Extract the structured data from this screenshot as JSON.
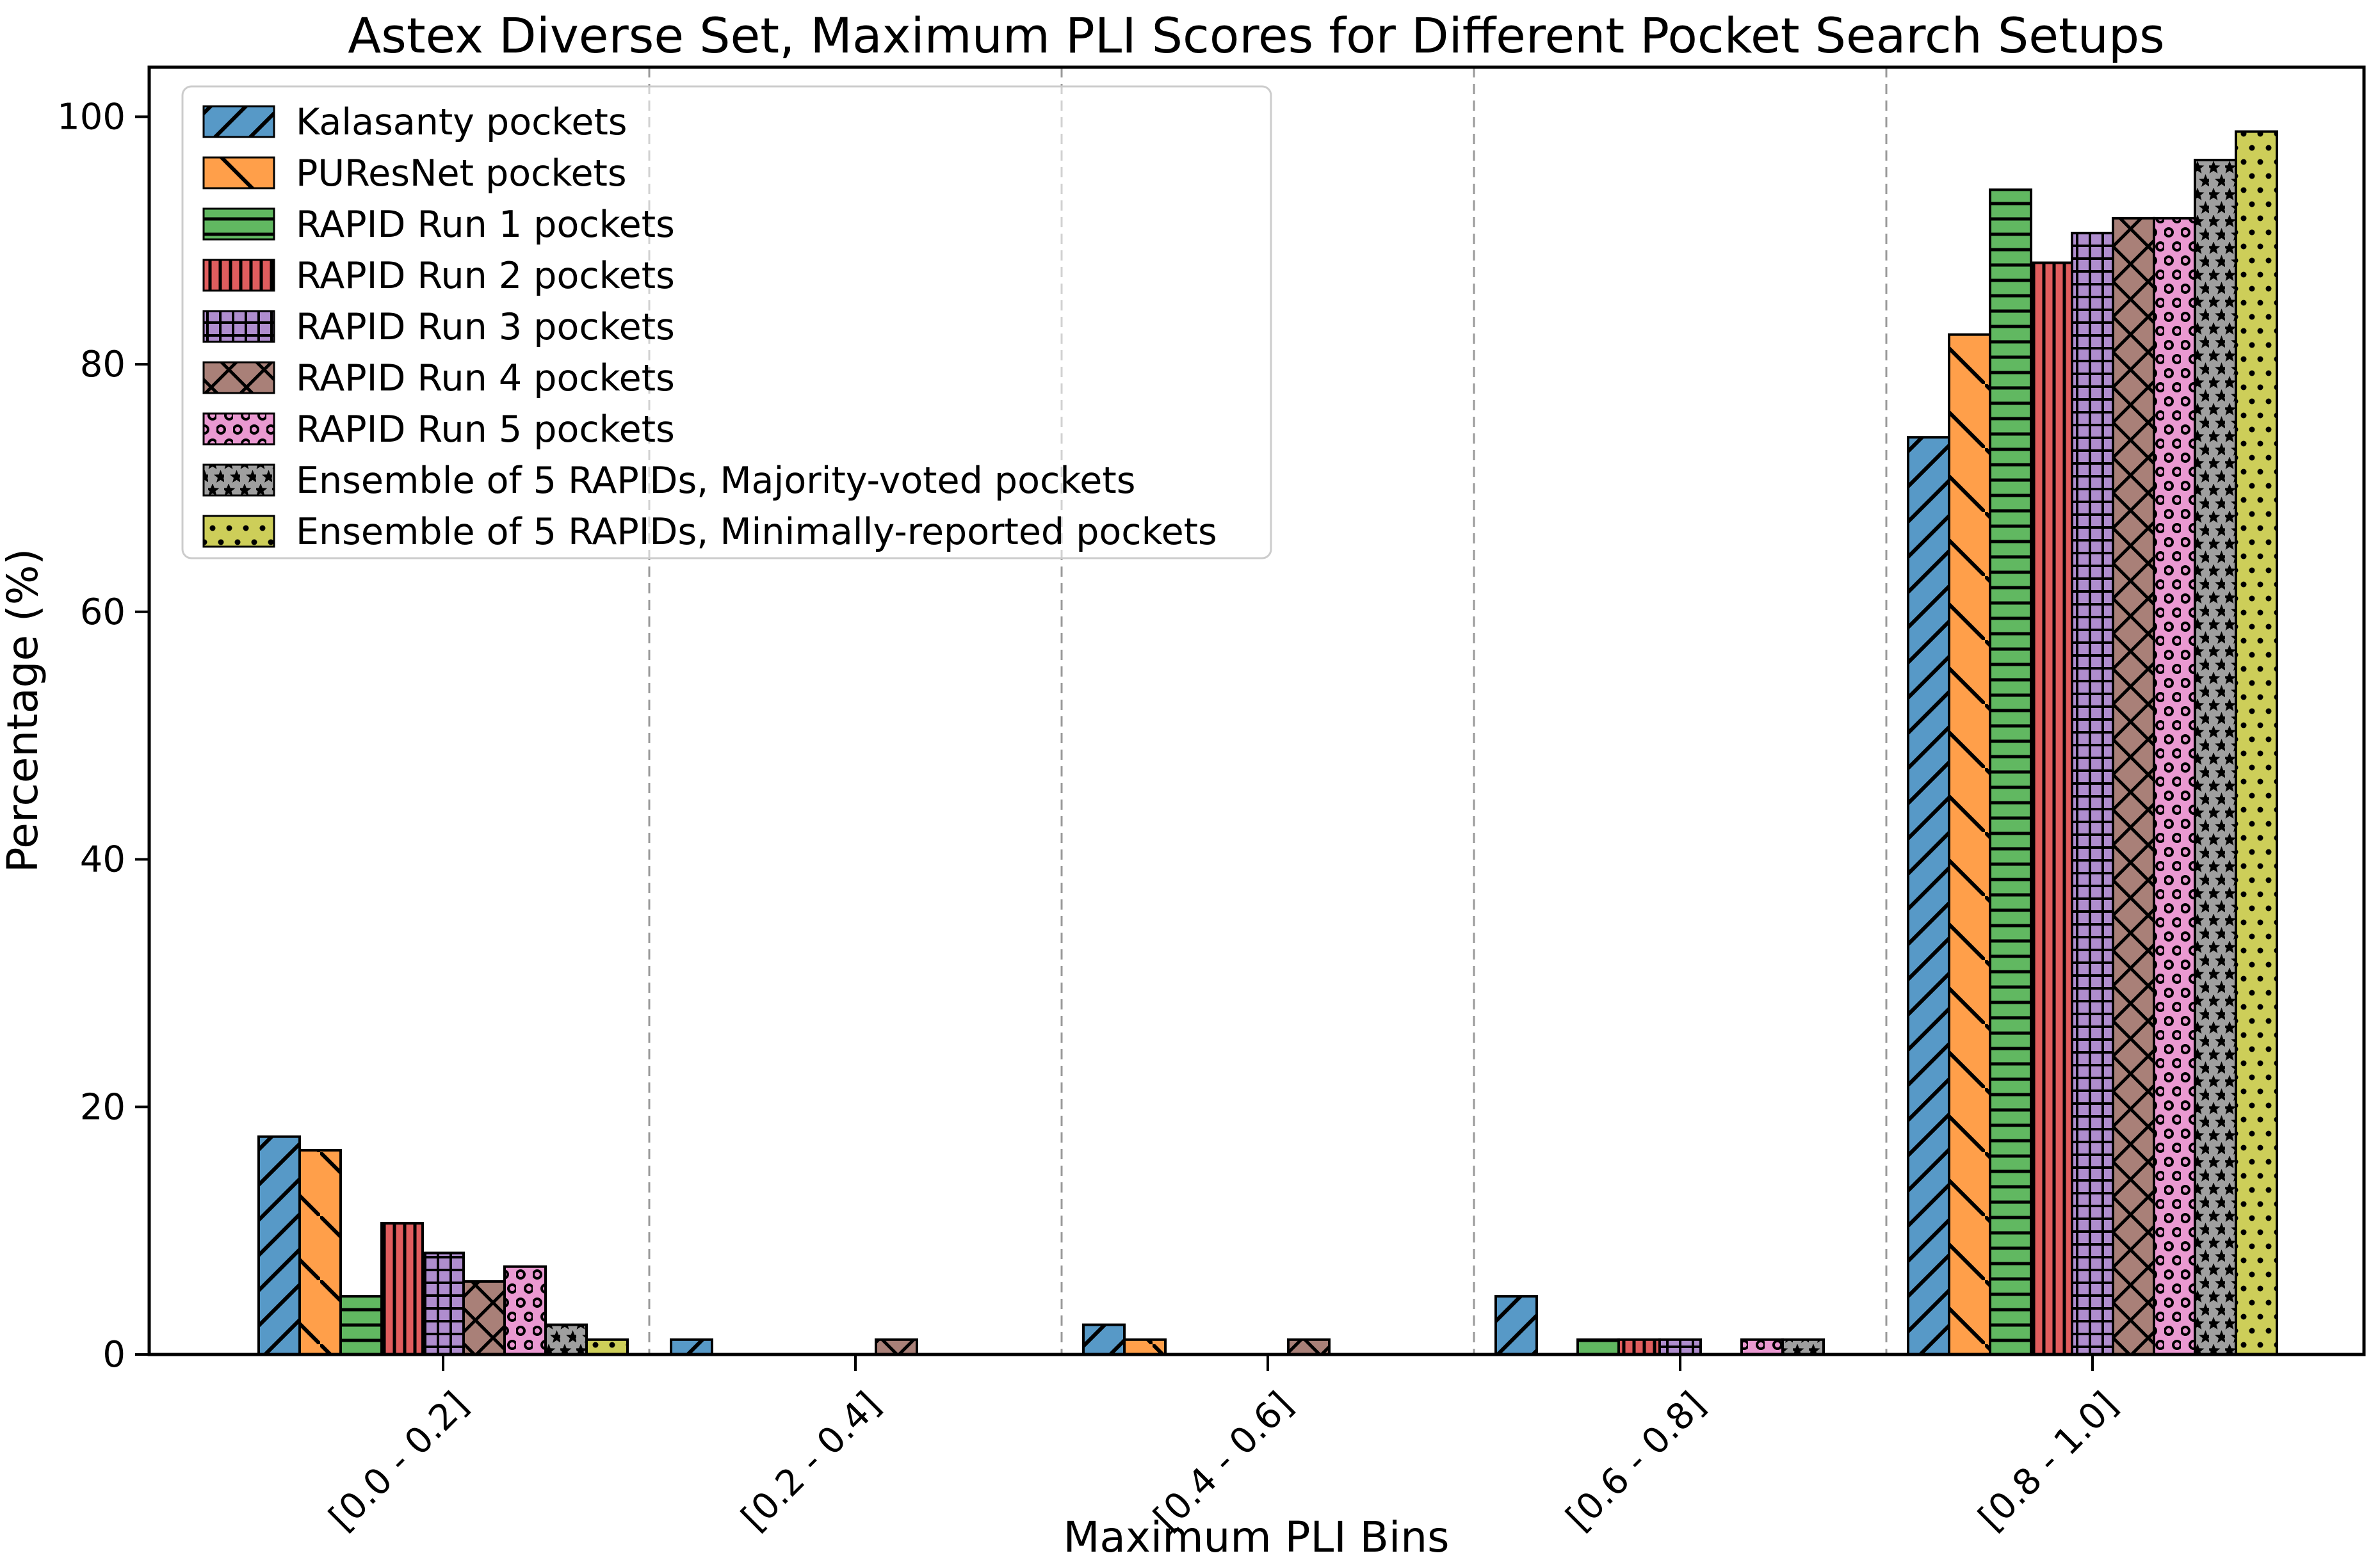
{
  "chart_data": {
    "type": "bar",
    "title": "Astex Diverse Set, Maximum PLI Scores for Different Pocket Search Setups",
    "xlabel": "Maximum PLI Bins",
    "ylabel": "Percentage (%)",
    "categories": [
      "[0.0 - 0.2]",
      "[0.2 - 0.4]",
      "[0.4 - 0.6]",
      "[0.6 - 0.8]",
      "[0.8 - 1.0]"
    ],
    "yticks": [
      0,
      20,
      40,
      60,
      80,
      100
    ],
    "ylim": [
      0,
      104
    ],
    "grid": "dashed-vertical-separators-between-bins",
    "legend_position": "upper-left",
    "separator_color": "#999999",
    "series": [
      {
        "name": "Kalasanty pockets",
        "color": "#5799C7",
        "hatch": "diag-forward",
        "values": [
          17.6,
          1.2,
          2.4,
          4.7,
          74.1
        ]
      },
      {
        "name": "PUResNet pockets",
        "color": "#FF9F4A",
        "hatch": "diag-back",
        "values": [
          16.5,
          0,
          1.2,
          0,
          82.4
        ]
      },
      {
        "name": "RAPID Run 1 pockets",
        "color": "#61B861",
        "hatch": "horizontal",
        "values": [
          4.7,
          0,
          0,
          1.2,
          94.1
        ]
      },
      {
        "name": "RAPID Run 2 pockets",
        "color": "#E05D5E",
        "hatch": "vertical",
        "values": [
          10.6,
          0,
          0,
          1.2,
          88.2
        ]
      },
      {
        "name": "RAPID Run 3 pockets",
        "color": "#AF8DCE",
        "hatch": "grid",
        "values": [
          8.2,
          0,
          0,
          1.2,
          90.6
        ]
      },
      {
        "name": "RAPID Run 4 pockets",
        "color": "#A98078",
        "hatch": "cross",
        "values": [
          5.9,
          1.2,
          1.2,
          0,
          91.8
        ]
      },
      {
        "name": "RAPID Run 5 pockets",
        "color": "#EA99D1",
        "hatch": "circle",
        "values": [
          7.1,
          0,
          0,
          1.2,
          91.8
        ]
      },
      {
        "name": "Ensemble of 5 RAPIDs, Majority-voted pockets",
        "color": "#9F9F9F",
        "hatch": "star",
        "values": [
          2.4,
          0,
          0,
          1.2,
          96.5
        ]
      },
      {
        "name": "Ensemble of 5 RAPIDs, Minimally-reported pockets",
        "color": "#CDCE59",
        "hatch": "dot",
        "values": [
          1.2,
          0,
          0,
          0,
          98.8
        ]
      }
    ]
  }
}
